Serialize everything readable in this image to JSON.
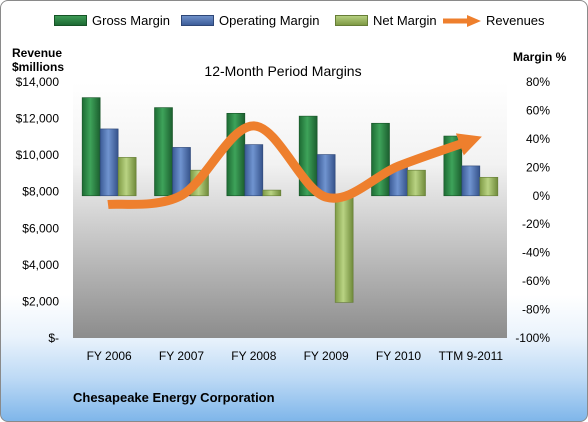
{
  "chart_data": {
    "type": "bar",
    "title": "12-Month Period Margins",
    "categories": [
      "FY 2006",
      "FY 2007",
      "FY 2008",
      "FY 2009",
      "FY 2010",
      "TTM 9-2011"
    ],
    "left_axis": {
      "label_line1": "Revenue",
      "label_line2": "$millions",
      "ylim": [
        0,
        14000
      ],
      "ticks": [
        "$-",
        "$2,000",
        "$4,000",
        "$6,000",
        "$8,000",
        "$10,000",
        "$12,000",
        "$14,000"
      ]
    },
    "right_axis": {
      "label": "Margin %",
      "ylim": [
        -100,
        80
      ],
      "ticks": [
        "-100%",
        "-80%",
        "-60%",
        "-40%",
        "-20%",
        "0%",
        "20%",
        "40%",
        "60%",
        "80%"
      ]
    },
    "series": [
      {
        "name": "Gross Margin",
        "axis": "right",
        "type": "bar",
        "color": "#2e8b4a",
        "values": [
          69,
          62,
          58,
          56,
          51,
          42
        ]
      },
      {
        "name": "Operating Margin",
        "axis": "right",
        "type": "bar",
        "color": "#4f74b6",
        "values": [
          47,
          34,
          36,
          29,
          21,
          21
        ]
      },
      {
        "name": "Net Margin",
        "axis": "right",
        "type": "bar",
        "color": "#9bbb59",
        "values": [
          27,
          18,
          4,
          -75,
          18,
          13
        ]
      },
      {
        "name": "Revenues",
        "axis": "left",
        "type": "line",
        "color": "#f0822e",
        "values": [
          7300,
          7800,
          11600,
          7700,
          9400,
          10800
        ]
      }
    ],
    "legend_position": "top",
    "grid": false
  },
  "footer": {
    "company": "Chesapeake Energy Corporation"
  }
}
